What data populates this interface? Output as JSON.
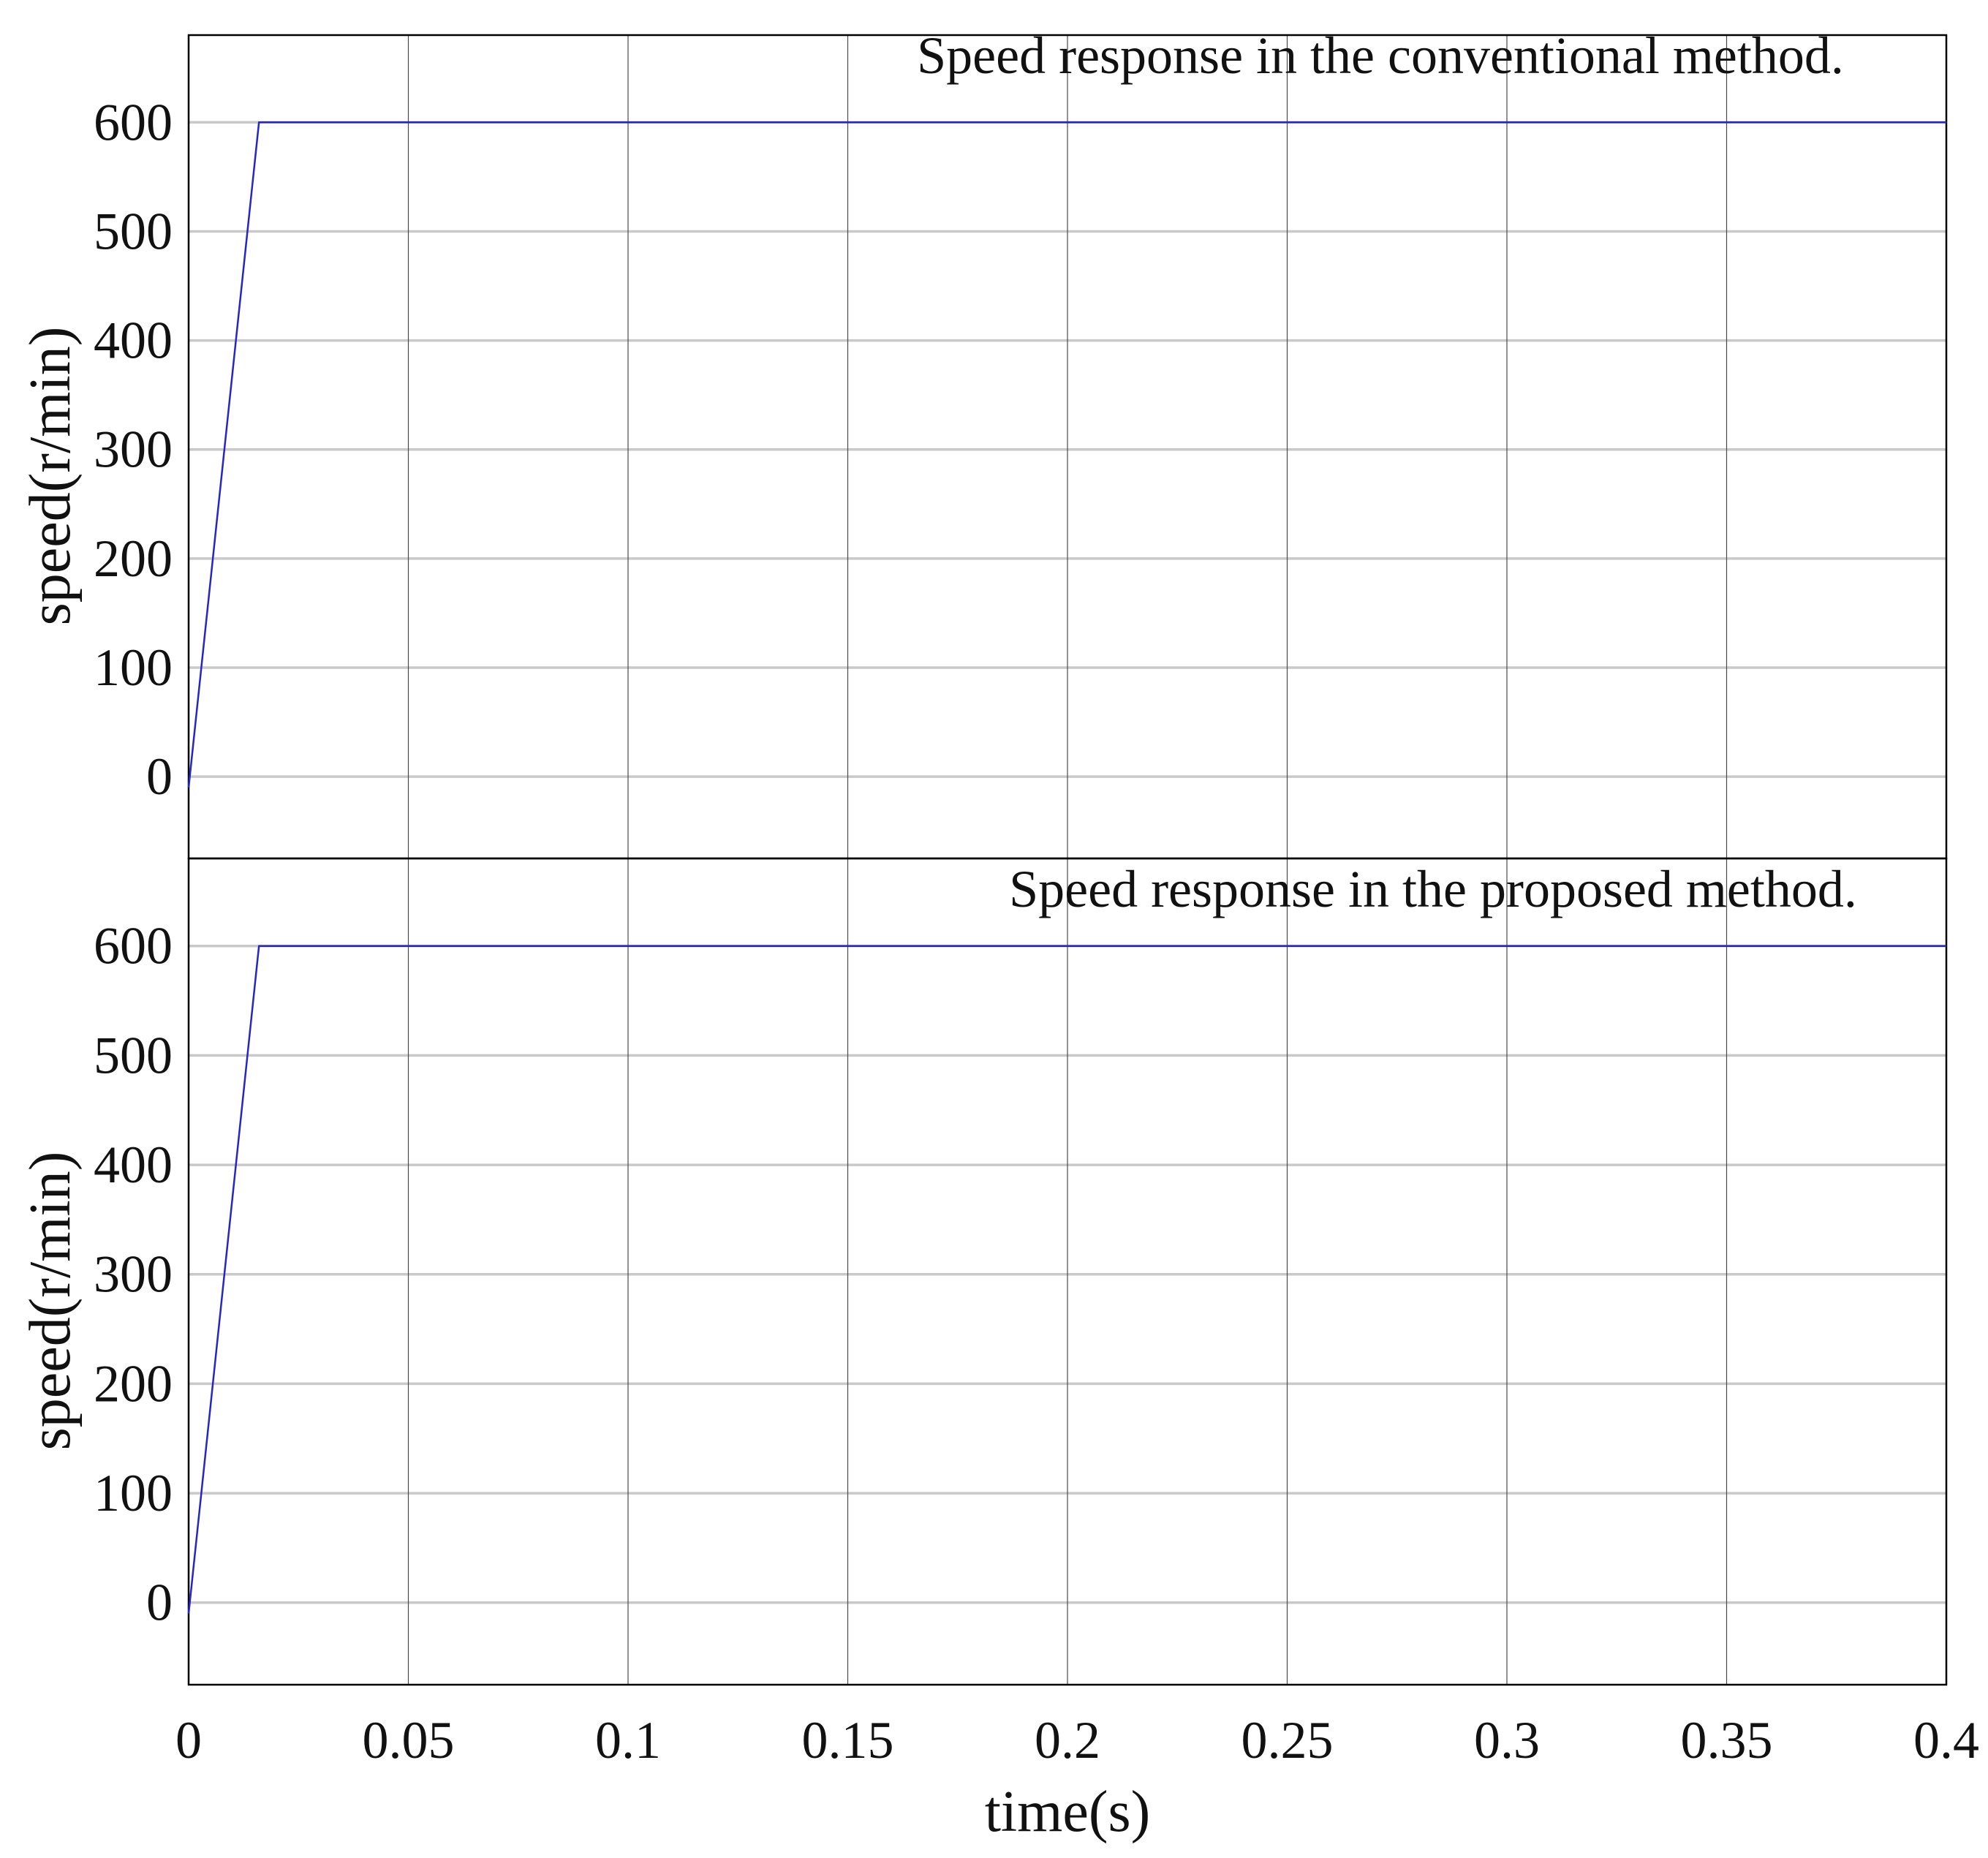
{
  "chart_data": [
    {
      "type": "line",
      "annotation": "Speed response in the conventional method.",
      "ylabel": "speed(r/min)",
      "xlabel": "",
      "xlim": [
        0,
        0.4
      ],
      "ylim": [
        -75,
        680
      ],
      "xticks": [
        0,
        0.05,
        0.1,
        0.15,
        0.2,
        0.25,
        0.3,
        0.35,
        0.4
      ],
      "yticks": [
        0,
        100,
        200,
        300,
        400,
        500,
        600
      ],
      "yticklabels": [
        "0",
        "100",
        "200",
        "300",
        "400",
        "500",
        "600"
      ],
      "grid": true,
      "series": [
        {
          "color": "#2626c4",
          "x": [
            0,
            0.016,
            0.4
          ],
          "y": [
            -10,
            600,
            600
          ]
        }
      ]
    },
    {
      "type": "line",
      "annotation": "Speed response in the proposed method.",
      "ylabel": "speed(r/min)",
      "xlabel": "time(s)",
      "xlim": [
        0,
        0.4
      ],
      "ylim": [
        -75,
        680
      ],
      "xticks": [
        0,
        0.05,
        0.1,
        0.15,
        0.2,
        0.25,
        0.3,
        0.35,
        0.4
      ],
      "xticklabels": [
        "0",
        "0.05",
        "0.1",
        "0.15",
        "0.2",
        "0.25",
        "0.3",
        "0.35",
        "0.4"
      ],
      "yticks": [
        0,
        100,
        200,
        300,
        400,
        500,
        600
      ],
      "yticklabels": [
        "0",
        "100",
        "200",
        "300",
        "400",
        "500",
        "600"
      ],
      "grid": true,
      "series": [
        {
          "color": "#2626c4",
          "x": [
            0,
            0.016,
            0.4
          ],
          "y": [
            -10,
            600,
            600
          ]
        }
      ]
    }
  ]
}
